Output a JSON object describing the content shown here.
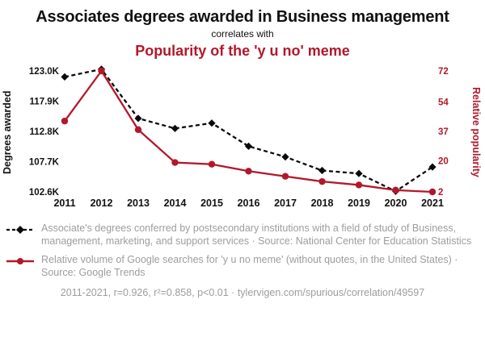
{
  "header": {
    "title": "Associates degrees awarded in Business management",
    "connector": "correlates with",
    "subtitle": "Popularity of the 'y u no' meme"
  },
  "colors": {
    "accent_red": "#b2182b",
    "series_black": "#0a0a0a",
    "muted_text": "#9d9d9d"
  },
  "chart_data": {
    "type": "line",
    "title": "Associates degrees awarded in Business management correlates with Popularity of the 'y u no' meme",
    "x": [
      2011,
      2012,
      2013,
      2014,
      2015,
      2016,
      2017,
      2018,
      2019,
      2020,
      2021
    ],
    "series": [
      {
        "name": "Associate's degrees conferred in Business, management, marketing, and support services",
        "axis": "left",
        "color": "#0a0a0a",
        "line_style": "dashed",
        "marker": "diamond",
        "values": [
          122000,
          123300,
          115000,
          113300,
          114200,
          110300,
          108500,
          106200,
          105700,
          102700,
          106800
        ]
      },
      {
        "name": "Relative volume of Google searches for 'y u no meme'",
        "axis": "right",
        "color": "#b2182b",
        "line_style": "solid",
        "marker": "circle",
        "values": [
          43,
          72,
          38,
          19,
          18,
          14,
          11,
          8,
          6,
          3,
          2
        ]
      }
    ],
    "left_axis": {
      "label": "Degrees awarded",
      "tick_labels": [
        "123.0K",
        "117.9K",
        "112.8K",
        "107.7K",
        "102.6K"
      ],
      "tick_values": [
        123000,
        117900,
        112800,
        107700,
        102600
      ],
      "range": [
        102600,
        123000
      ]
    },
    "right_axis": {
      "label": "Relative popularity",
      "tick_labels": [
        "72",
        "54",
        "37",
        "20",
        "2"
      ],
      "tick_values": [
        72,
        54,
        37,
        20,
        2
      ],
      "range": [
        2,
        72
      ]
    },
    "grid": false,
    "legend_position": "bottom"
  },
  "legend": {
    "items": [
      {
        "icon": "black-dashed-diamond-line-icon",
        "text": "Associate's degrees conferred by postsecondary institutions with a field of study of Business, management, marketing, and support services · Source: National Center for Education Statistics"
      },
      {
        "icon": "red-solid-circle-line-icon",
        "text": "Relative volume of Google searches for 'y u no meme' (without quotes, in the United States) · Source: Google Trends"
      }
    ]
  },
  "footer": {
    "text": "2011-2021, r=0.926, r²=0.858, p<0.01 · tylervigen.com/spurious/correlation/49597"
  }
}
